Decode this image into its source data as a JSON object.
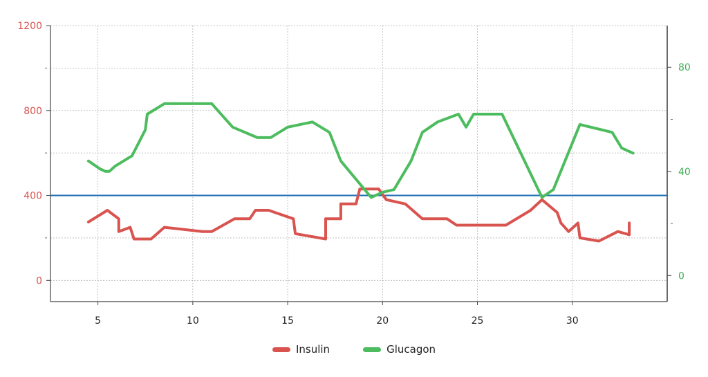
{
  "chart_data": {
    "type": "line",
    "title": "",
    "xlabel": "",
    "ylabel": "",
    "xlim": [
      2.5,
      35
    ],
    "ylim_left": [
      -100,
      1200
    ],
    "ylim_right": [
      -10,
      96
    ],
    "x_ticks": [
      5,
      10,
      15,
      20,
      25,
      30
    ],
    "y_left_ticks": [
      0,
      400,
      800,
      1200
    ],
    "y_left_minor_ticks": [
      200,
      600,
      1000
    ],
    "y_right_ticks": [
      0,
      40,
      80
    ],
    "y_right_minor_ticks": [
      20,
      60
    ],
    "grid": true,
    "legend_position": "bottom",
    "reference_line": {
      "axis": "left",
      "y": 400,
      "color": "#1f6fb5"
    },
    "left_axis_color": "#d9534f",
    "right_axis_color": "#3fae55",
    "series": [
      {
        "name": "Insulin",
        "axis": "left",
        "color": "#d9534f",
        "points": [
          [
            4.5,
            275
          ],
          [
            5.5,
            330
          ],
          [
            6.1,
            290
          ],
          [
            6.1,
            230
          ],
          [
            6.7,
            250
          ],
          [
            6.9,
            195
          ],
          [
            7.8,
            195
          ],
          [
            8.5,
            250
          ],
          [
            10.5,
            230
          ],
          [
            11.0,
            230
          ],
          [
            12.2,
            290
          ],
          [
            13.0,
            290
          ],
          [
            13.3,
            330
          ],
          [
            14.0,
            330
          ],
          [
            15.3,
            290
          ],
          [
            15.4,
            220
          ],
          [
            17.0,
            195
          ],
          [
            17.0,
            290
          ],
          [
            17.8,
            290
          ],
          [
            17.8,
            360
          ],
          [
            18.6,
            360
          ],
          [
            18.8,
            430
          ],
          [
            19.8,
            430
          ],
          [
            20.2,
            380
          ],
          [
            21.2,
            360
          ],
          [
            22.1,
            290
          ],
          [
            23.4,
            290
          ],
          [
            23.9,
            260
          ],
          [
            26.5,
            260
          ],
          [
            27.8,
            330
          ],
          [
            28.4,
            380
          ],
          [
            29.2,
            320
          ],
          [
            29.4,
            270
          ],
          [
            29.8,
            230
          ],
          [
            30.3,
            270
          ],
          [
            30.4,
            200
          ],
          [
            31.4,
            185
          ],
          [
            32.4,
            230
          ],
          [
            33.0,
            215
          ],
          [
            33.0,
            270
          ]
        ]
      },
      {
        "name": "Glucagon",
        "axis": "right",
        "color": "#4cbc5e",
        "points": [
          [
            4.5,
            44
          ],
          [
            5.1,
            41
          ],
          [
            5.4,
            40
          ],
          [
            5.6,
            40
          ],
          [
            5.9,
            42
          ],
          [
            6.8,
            46
          ],
          [
            7.5,
            56
          ],
          [
            7.6,
            62
          ],
          [
            8.5,
            66
          ],
          [
            11.0,
            66
          ],
          [
            12.1,
            57
          ],
          [
            13.4,
            53
          ],
          [
            14.1,
            53
          ],
          [
            15.0,
            57
          ],
          [
            16.3,
            59
          ],
          [
            17.2,
            55
          ],
          [
            17.8,
            44
          ],
          [
            19.4,
            30
          ],
          [
            20.0,
            32
          ],
          [
            20.6,
            33
          ],
          [
            21.5,
            44
          ],
          [
            22.1,
            55
          ],
          [
            22.9,
            59
          ],
          [
            24.0,
            62
          ],
          [
            24.4,
            57
          ],
          [
            24.8,
            62
          ],
          [
            26.3,
            62
          ],
          [
            28.4,
            30
          ],
          [
            29.0,
            33
          ],
          [
            30.4,
            58
          ],
          [
            32.1,
            55
          ],
          [
            32.6,
            49
          ],
          [
            33.2,
            47
          ]
        ]
      }
    ]
  }
}
